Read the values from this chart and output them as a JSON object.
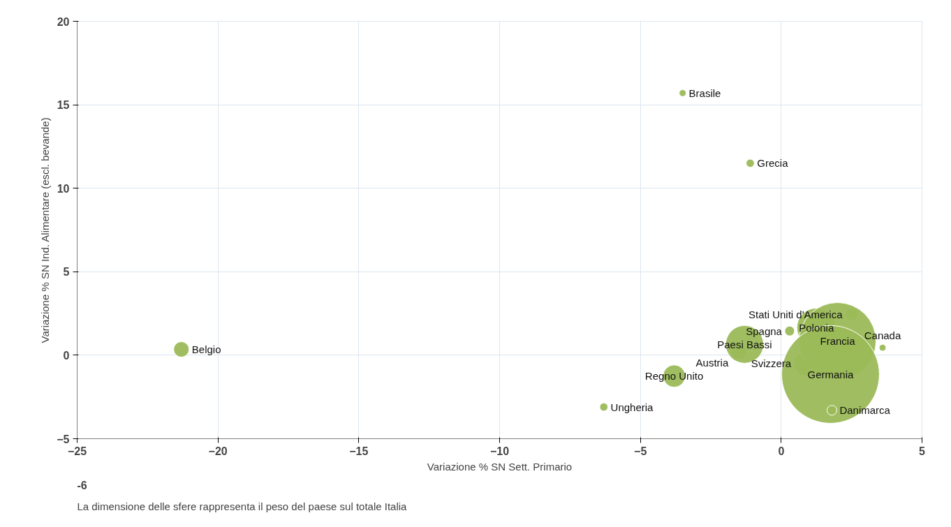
{
  "chart_data": {
    "type": "bubble",
    "xlabel": "Variazione % SN Sett. Primario",
    "ylabel": "Variazione % SN Ind. Alimentare (escl. bevande)",
    "xlim": [
      -25,
      5
    ],
    "xticks": [
      -25,
      -20,
      -15,
      -10,
      -5,
      0,
      5
    ],
    "ylim": [
      -5,
      20
    ],
    "yticks": [
      -5,
      0,
      5,
      10,
      15,
      20
    ],
    "grid": true,
    "legend": false,
    "annotations": [
      "-6",
      "La dimensione delle sfere rappresenta il peso del paese sul totale Italia"
    ],
    "series": [
      {
        "name": "Brasile",
        "color": "#9bbb59",
        "x": [
          -3.5
        ],
        "values": [
          15.7
        ],
        "sizes": [
          0.005
        ]
      },
      {
        "name": "Grecia",
        "color": "#9bbb59",
        "x": [
          -1.1
        ],
        "values": [
          11.5
        ],
        "sizes": [
          0.007
        ]
      },
      {
        "name": "Belgio",
        "color": "#9bbb59",
        "x": [
          -21.3
        ],
        "values": [
          0.35
        ],
        "sizes": [
          0.025
        ]
      },
      {
        "name": "Austria",
        "color": "#9bbb59",
        "x": [
          -1.5
        ],
        "values": [
          0.2
        ],
        "sizes": [
          0.025
        ]
      },
      {
        "name": "Paesi Bassi",
        "color": "#9bbb59",
        "x": [
          -1.3
        ],
        "values": [
          0.65
        ],
        "sizes": [
          0.15
        ]
      },
      {
        "name": "Regno Unito",
        "color": "#9bbb59",
        "x": [
          -3.8
        ],
        "values": [
          -1.25
        ],
        "sizes": [
          0.052
        ]
      },
      {
        "name": "Ungheria",
        "color": "#9bbb59",
        "x": [
          -6.3
        ],
        "values": [
          -3.1
        ],
        "sizes": [
          0.007
        ]
      },
      {
        "name": "Spagna",
        "color": "#9bbb59",
        "x": [
          0.3
        ],
        "values": [
          1.45
        ],
        "sizes": [
          0.01
        ]
      },
      {
        "name": "Svizzera",
        "color": "#9bbb59",
        "x": [
          0.9
        ],
        "values": [
          -0.5
        ],
        "sizes": [
          0.066
        ]
      },
      {
        "name": "Polonia",
        "color": "#9bbb59",
        "x": [
          1.25
        ],
        "values": [
          1.65
        ],
        "sizes": [
          0.16
        ]
      },
      {
        "name": "Stati Uniti d'America",
        "color": "#9bbb59",
        "x": [
          2.5
        ],
        "values": [
          2.45
        ],
        "sizes": [
          0.017
        ]
      },
      {
        "name": "Francia",
        "color": "#9bbb59",
        "x": [
          2.0
        ],
        "values": [
          0.85
        ],
        "sizes": [
          0.62
        ]
      },
      {
        "name": "Germania",
        "color": "#9bbb59",
        "x": [
          1.75
        ],
        "values": [
          -1.15
        ],
        "sizes": [
          1
        ]
      },
      {
        "name": "Danimarca",
        "color": "#9bbb59",
        "x": [
          1.8
        ],
        "values": [
          -3.3
        ],
        "sizes": [
          0.01
        ]
      },
      {
        "name": "Canada",
        "color": "#9bbb59",
        "x": [
          3.6
        ],
        "values": [
          0.45
        ],
        "sizes": [
          0.005
        ]
      }
    ]
  }
}
